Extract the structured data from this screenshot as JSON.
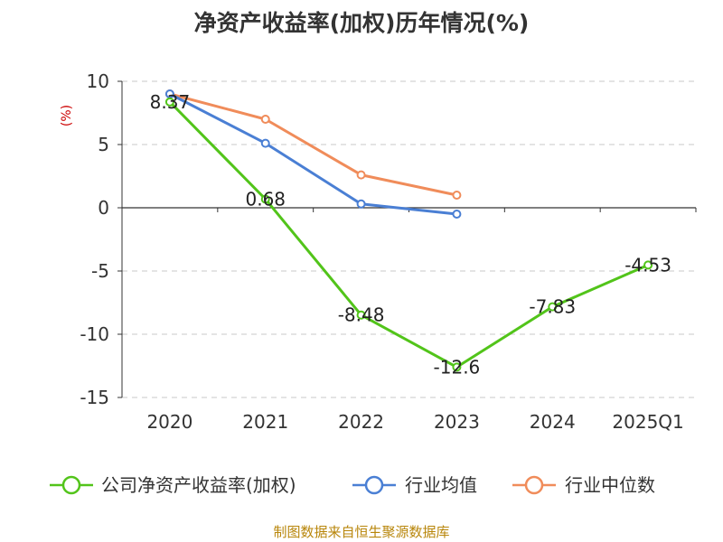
{
  "chart_data": {
    "type": "line",
    "title": "净资产收益率(加权)历年情况(%)",
    "ylabel": "(%)",
    "categories": [
      "2020",
      "2021",
      "2022",
      "2023",
      "2024",
      "2025Q1"
    ],
    "ylim": [
      -15,
      10
    ],
    "yticks": [
      10,
      5,
      0,
      -5,
      -10,
      -15
    ],
    "grid": true,
    "legend_position": "bottom",
    "series": [
      {
        "name": "公司净资产收益率(加权)",
        "color": "#52c41a",
        "values": [
          8.37,
          0.68,
          -8.48,
          -12.6,
          -7.83,
          -4.53
        ],
        "labels": [
          "8.37",
          "0.68",
          "-8.48",
          "-12.6",
          "-7.83",
          "-4.53"
        ]
      },
      {
        "name": "行业均值",
        "color": "#4a7fd4",
        "values": [
          9.0,
          5.1,
          0.3,
          -0.5,
          null,
          null
        ]
      },
      {
        "name": "行业中位数",
        "color": "#f08c5a",
        "values": [
          9.0,
          7.0,
          2.6,
          1.0,
          null,
          null
        ]
      }
    ]
  },
  "source": "制图数据来自恒生聚源数据库"
}
